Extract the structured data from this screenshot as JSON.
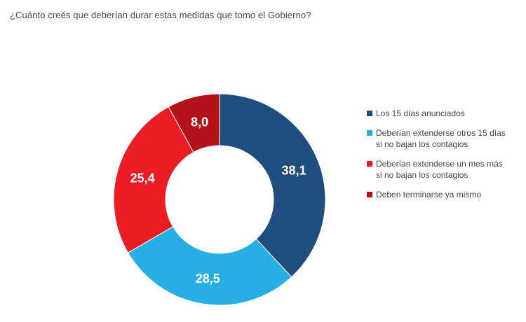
{
  "chart_data": {
    "type": "pie",
    "donut": true,
    "title": "¿Cuánto creés que deberían durar estas medidas que tomo el Gobierno?",
    "slices": [
      {
        "label": "Los 15 días anunciados",
        "value": 38.1,
        "value_text": "38,1",
        "color": "#1f4e7e"
      },
      {
        "label": "Deberían extenderse otros 15 días\nsi no bajan los contagios",
        "value": 28.5,
        "value_text": "28,5",
        "color": "#27aee3"
      },
      {
        "label": "Deberían extenderse un mes más\nsi no bajan los contagios",
        "value": 25.4,
        "value_text": "25,4",
        "color": "#ec1c24"
      },
      {
        "label": "Deben terminarse ya mismo",
        "value": 8.0,
        "value_text": "8,0",
        "color": "#b3121b"
      }
    ],
    "legend_position": "right"
  }
}
